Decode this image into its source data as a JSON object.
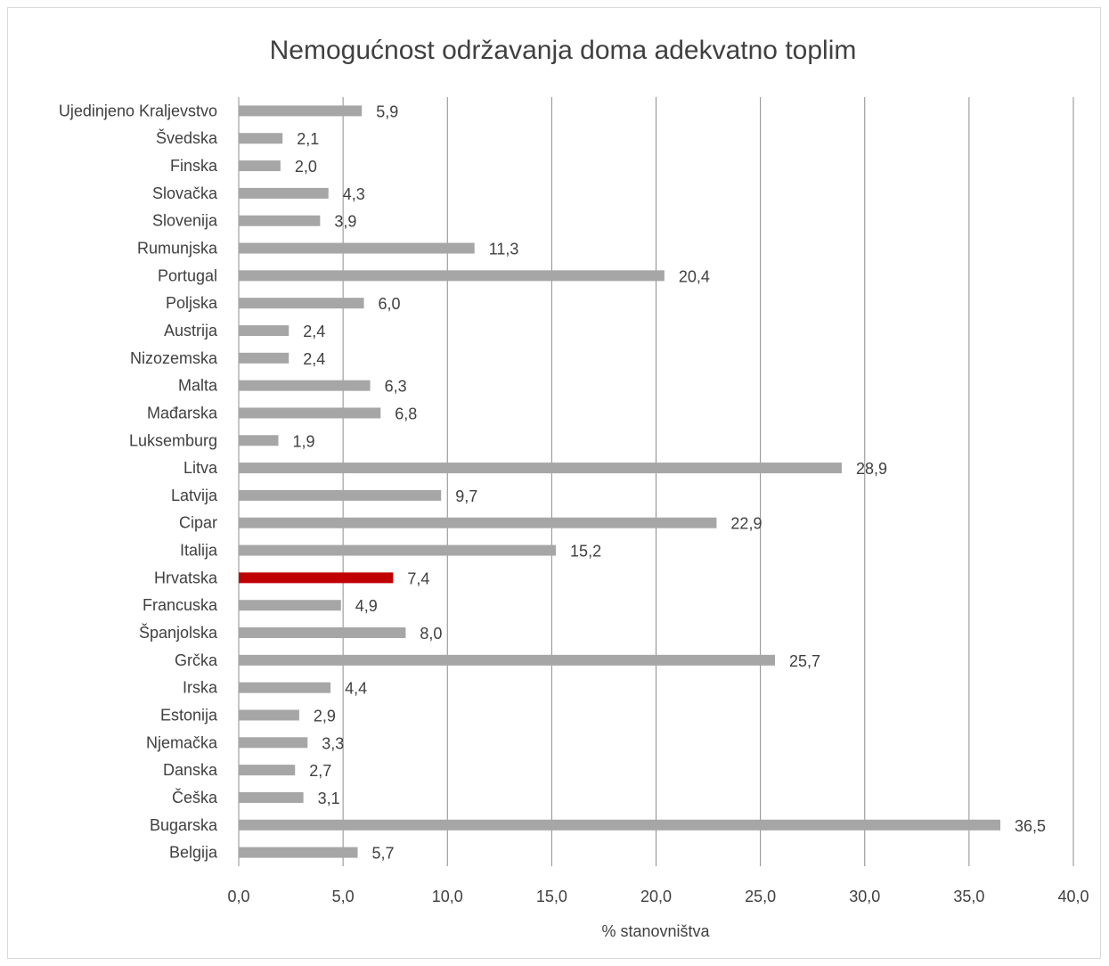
{
  "chart_data": {
    "type": "bar",
    "orientation": "horizontal",
    "title": "Nemogućnost održavanja doma adekvatno toplim",
    "xlabel": "% stanovništva",
    "ylabel": "",
    "xlim": [
      0,
      40
    ],
    "x_ticks": [
      "0,0",
      "5,0",
      "10,0",
      "15,0",
      "20,0",
      "25,0",
      "30,0",
      "35,0",
      "40,0"
    ],
    "grid": "vertical",
    "legend": "none",
    "bar_color": "#a6a6a6",
    "highlight_color": "#c00000",
    "highlight_category": "Hrvatska",
    "categories": [
      "Ujedinjeno Kraljevstvo",
      "Švedska",
      "Finska",
      "Slovačka",
      "Slovenija",
      "Rumunjska",
      "Portugal",
      "Poljska",
      "Austrija",
      "Nizozemska",
      "Malta",
      "Mađarska",
      "Luksemburg",
      "Litva",
      "Latvija",
      "Cipar",
      "Italija",
      "Hrvatska",
      "Francuska",
      "Španjolska",
      "Grčka",
      "Irska",
      "Estonija",
      "Njemačka",
      "Danska",
      "Češka",
      "Bugarska",
      "Belgija"
    ],
    "values": [
      5.9,
      2.1,
      2.0,
      4.3,
      3.9,
      11.3,
      20.4,
      6.0,
      2.4,
      2.4,
      6.3,
      6.8,
      1.9,
      28.9,
      9.7,
      22.9,
      15.2,
      7.4,
      4.9,
      8.0,
      25.7,
      4.4,
      2.9,
      3.3,
      2.7,
      3.1,
      36.5,
      5.7
    ],
    "value_labels": [
      "5,9",
      "2,1",
      "2,0",
      "4,3",
      "3,9",
      "11,3",
      "20,4",
      "6,0",
      "2,4",
      "2,4",
      "6,3",
      "6,8",
      "1,9",
      "28,9",
      "9,7",
      "22,9",
      "15,2",
      "7,4",
      "4,9",
      "8,0",
      "25,7",
      "4,4",
      "2,9",
      "3,3",
      "2,7",
      "3,1",
      "36,5",
      "5,7"
    ]
  }
}
